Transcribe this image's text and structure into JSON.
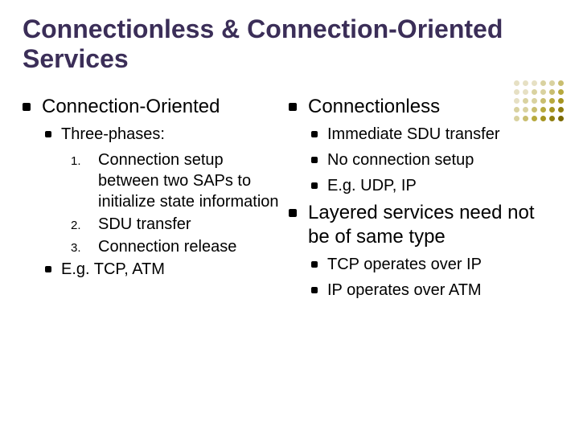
{
  "title_color": "#3b2e58",
  "title": "Connectionless & Connection-Oriented Services",
  "left": {
    "heading": "Connection-Oriented",
    "sub1": "Three-phases:",
    "n1": "Connection setup between two SAPs to initialize state information",
    "n2": "SDU transfer",
    "n3": "Connection release",
    "sub2": "E.g. TCP, ATM"
  },
  "right": {
    "heading1": "Connectionless",
    "r1a": "Immediate SDU transfer",
    "r1b": "No connection setup",
    "r1c": "E.g. UDP, IP",
    "heading2": "Layered services need not be of same type",
    "r2a": "TCP operates over IP",
    "r2b": "IP operates over ATM"
  },
  "deco_colors": [
    "#e6e0c4",
    "#e6e0c4",
    "#e6e0c4",
    "#d9d2a0",
    "#d9d2a0",
    "#c9be70",
    "#e6e0c4",
    "#e6e0c4",
    "#d9d2a0",
    "#d9d2a0",
    "#c9be70",
    "#b7a93e",
    "#e6e0c4",
    "#d9d2a0",
    "#d9d2a0",
    "#c9be70",
    "#b7a93e",
    "#a59420",
    "#d9d2a0",
    "#d9d2a0",
    "#c9be70",
    "#b7a93e",
    "#a59420",
    "#8f7e10",
    "#d9d2a0",
    "#c9be70",
    "#b7a93e",
    "#a59420",
    "#8f7e10",
    "#7a6900"
  ]
}
